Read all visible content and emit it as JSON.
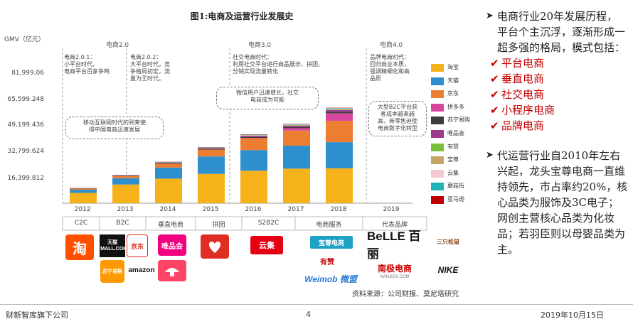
{
  "title": "图1:电商及运营行业发展史",
  "y_axis_label": "GMV（亿元）",
  "eras": [
    "电商2.0",
    "电商3.0",
    "电商4.0"
  ],
  "era_notes": [
    "电商2.0.1：\n小平台时代，\n电商平台百家争鸣",
    "电商2.0.2：\n大平台时代，竞\n争格局初定，流\n量为王时代。",
    "社交电商时代：\n利用社交平台进行商品展示、拼团、\n分销实现流量转化",
    "品牌电商时代：\n回归商业本质，\n强调精细化和高\n品质"
  ],
  "bubbles": [
    "移动互联网时代的到来使\n得中国电商迅速发展",
    "微信用户迅速增长，社交\n电商成为可能",
    "大型B2C平台获\n客成本越来越\n高，新零售迫使\n电商数字化转型"
  ],
  "chart_data": {
    "type": "bar",
    "stacked": true,
    "categories": [
      "2012",
      "2013",
      "2014",
      "2015",
      "2016",
      "2017",
      "2018",
      "2019"
    ],
    "y_ticks": [
      "16,399.812",
      "32,799.624",
      "49,199.436",
      "65,599.248",
      "81,999.06"
    ],
    "ylim": [
      0,
      81999.06
    ],
    "series": [
      {
        "name": "淘宝",
        "color": "#f6b21a",
        "values": [
          6500,
          11800,
          15500,
          18500,
          20500,
          21800,
          22000,
          0
        ]
      },
      {
        "name": "天猫",
        "color": "#2e8fce",
        "values": [
          2000,
          4000,
          7000,
          11000,
          13000,
          14500,
          16500,
          0
        ]
      },
      {
        "name": "京东",
        "color": "#ed7d31",
        "values": [
          700,
          1300,
          2500,
          4300,
          7500,
          9500,
          13500,
          0
        ]
      },
      {
        "name": "拼多多",
        "color": "#d946a0",
        "values": [
          0,
          0,
          0,
          0,
          200,
          1500,
          4700,
          0
        ]
      },
      {
        "name": "苏宁易购",
        "color": "#3d3d3d",
        "values": [
          150,
          200,
          300,
          400,
          500,
          700,
          1000,
          0
        ]
      },
      {
        "name": "唯品会",
        "color": "#9c3a8c",
        "values": [
          150,
          300,
          400,
          500,
          800,
          900,
          1100,
          0
        ]
      },
      {
        "name": "有赞",
        "color": "#7cbf3c",
        "values": [
          0,
          0,
          50,
          100,
          150,
          200,
          250,
          0
        ]
      },
      {
        "name": "宝尊",
        "color": "#c7a46a",
        "values": [
          50,
          80,
          100,
          150,
          250,
          300,
          400,
          0
        ]
      },
      {
        "name": "云集",
        "color": "#f5c8cf",
        "values": [
          0,
          0,
          0,
          50,
          100,
          200,
          300,
          0
        ]
      },
      {
        "name": "蘑菇街",
        "color": "#1fb3b8",
        "values": [
          50,
          100,
          150,
          200,
          250,
          300,
          300,
          0
        ]
      },
      {
        "name": "亚马逊",
        "color": "#c00000",
        "values": [
          50,
          100,
          100,
          150,
          150,
          150,
          150,
          0
        ]
      }
    ]
  },
  "models": [
    "C2C",
    "B2C",
    "垂直电商",
    "拼团",
    "S2B2C",
    "电商服务",
    "代表品牌"
  ],
  "logos": {
    "taobao": "淘",
    "tmall": "天猫 TMALL.COM",
    "jd": "京东",
    "vip": "唯品会",
    "suning": "苏宁易购",
    "amazon": "amazon",
    "mogujie": "",
    "pinduoduo": "",
    "yunji": "云集",
    "baozun": "宝尊电商",
    "youzan": "有赞",
    "weimob": "Weimob 微盟",
    "belle": "BeLLE 百丽",
    "nanji": "南极电商",
    "nanji_sub": "NANJIDS.COM",
    "squirrels": "三只松鼠",
    "nike": "NIKE"
  },
  "source": "资料来源：公司财报、莫尼塔研究",
  "right_panel": {
    "para1": "电商行业20年发展历程，平台个主沉浮，逐渐形成一超多强的格局，模式包括：",
    "checks": [
      "平台电商",
      "垂直电商",
      "社交电商",
      "小程序电商",
      "品牌电商"
    ],
    "para2": "代运营行业自2010年左右兴起，龙头宝尊电商一直维持领先，市占率约20%，核心品类为服饰及3C电子；网创主营核心品类为化妆品；若羽臣则以母婴品类为主。"
  },
  "footer": {
    "left": "财新智库旗下公司",
    "page": "4",
    "date": "2019年10月15日"
  }
}
